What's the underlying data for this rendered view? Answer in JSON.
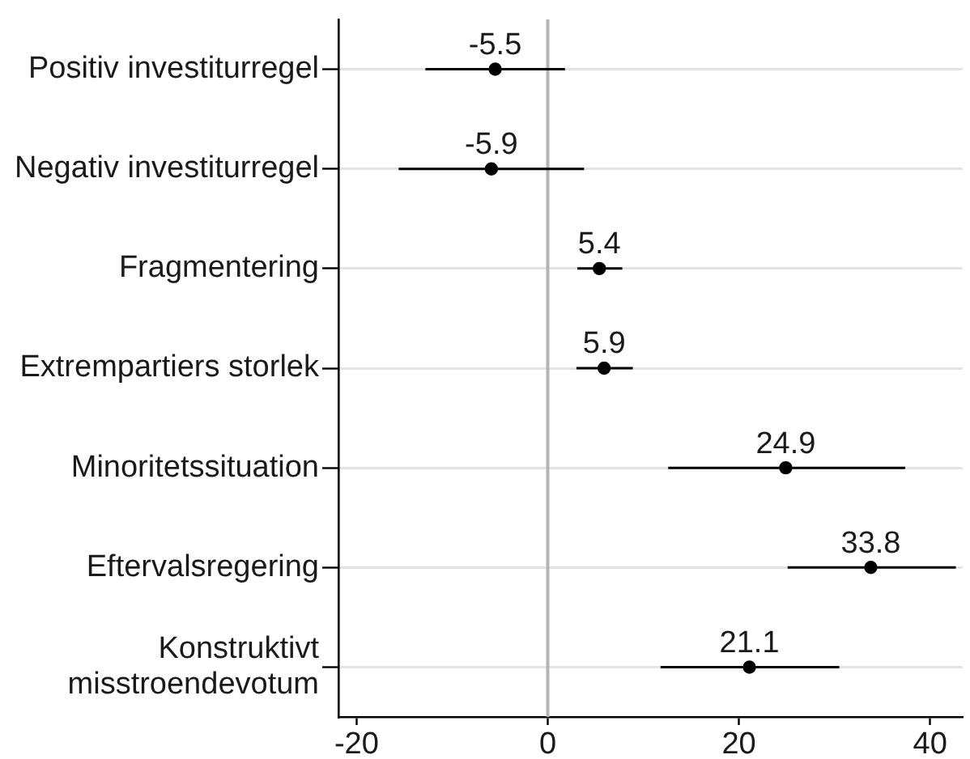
{
  "chart_data": {
    "type": "scatter",
    "orientation": "horizontal",
    "categories": [
      "Positiv investiturregel",
      "Negativ investiturregel",
      "Fragmentering",
      "Extrempartiers storlek",
      "Minoritetssituation",
      "Eftervalsregering",
      "Konstruktivt misstroendevotum"
    ],
    "values": [
      -5.5,
      -5.9,
      5.4,
      5.9,
      24.9,
      33.8,
      21.1
    ],
    "errors": [
      [
        -12.8,
        1.8
      ],
      [
        -15.6,
        3.8
      ],
      [
        3.1,
        7.8
      ],
      [
        3.0,
        8.9
      ],
      [
        12.6,
        37.4
      ],
      [
        25.1,
        42.7
      ],
      [
        11.8,
        30.5
      ]
    ],
    "color": "#000000",
    "marker": "circle",
    "data_labels": true,
    "xlim": [
      -21.9,
      43.4
    ],
    "xticks": [
      -20,
      0,
      20,
      40
    ],
    "grid": "y",
    "ref_lines": [
      {
        "axis": "x",
        "value": 0,
        "color": "#b4b4b4"
      }
    ]
  }
}
